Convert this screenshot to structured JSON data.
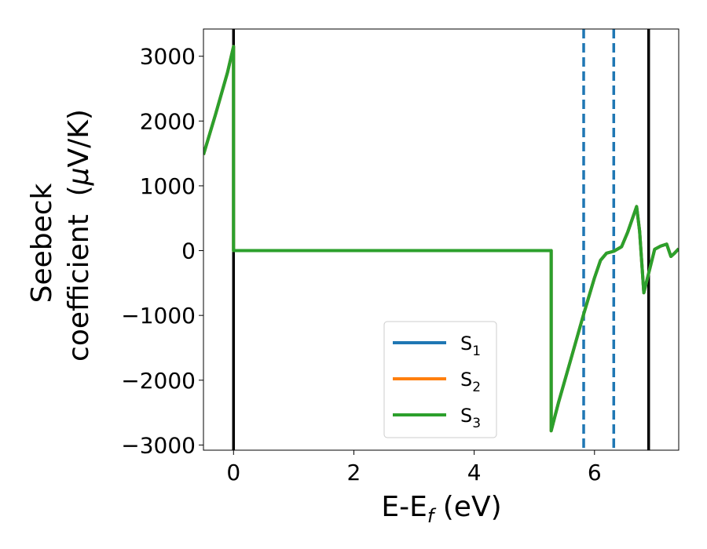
{
  "chart_data": {
    "type": "line",
    "title": "",
    "xlabel": {
      "main": "E-E",
      "sub": "f",
      "suffix": " (eV)"
    },
    "ylabel": {
      "line1": "Seebeck",
      "line2": "coefficient  (",
      "mu": "μ",
      "line2_suffix": "V/K)"
    },
    "xlim": [
      -0.5,
      7.4
    ],
    "ylim": [
      -3080,
      3420
    ],
    "xticks": [
      0,
      2,
      4,
      6
    ],
    "xtick_labels": [
      "0",
      "2",
      "4",
      "6"
    ],
    "yticks": [
      3000,
      2000,
      1000,
      0,
      -1000,
      -2000,
      -3000
    ],
    "ytick_labels": [
      "3000",
      "2000",
      "1000",
      "0",
      "−1000",
      "−2000",
      "−3000"
    ],
    "grid": false,
    "legend_placement": "lower-center",
    "vertical_lines": [
      {
        "x": 0.0,
        "style": "solid",
        "color": "#000000"
      },
      {
        "x": 6.9,
        "style": "solid",
        "color": "#000000"
      },
      {
        "x": 5.82,
        "style": "dashed",
        "color": "#1f77b4"
      },
      {
        "x": 6.32,
        "style": "dashed",
        "color": "#1f77b4"
      }
    ],
    "series": [
      {
        "name": "S",
        "sub": "1",
        "color": "#1f77b4",
        "points": [
          [
            -0.5,
            1480
          ],
          [
            -0.3,
            2100
          ],
          [
            -0.1,
            2750
          ],
          [
            0.0,
            3150
          ],
          [
            0.0,
            0
          ],
          [
            5.28,
            0
          ],
          [
            5.28,
            -2780
          ],
          [
            5.4,
            -2350
          ],
          [
            5.6,
            -1700
          ],
          [
            5.82,
            -980
          ],
          [
            6.0,
            -420
          ],
          [
            6.1,
            -150
          ],
          [
            6.2,
            -40
          ],
          [
            6.32,
            -10
          ],
          [
            6.45,
            60
          ],
          [
            6.55,
            280
          ],
          [
            6.7,
            680
          ],
          [
            6.75,
            300
          ],
          [
            6.82,
            -650
          ],
          [
            6.9,
            -350
          ],
          [
            7.0,
            20
          ],
          [
            7.1,
            70
          ],
          [
            7.2,
            100
          ],
          [
            7.27,
            -90
          ],
          [
            7.33,
            -40
          ],
          [
            7.4,
            30
          ]
        ]
      },
      {
        "name": "S",
        "sub": "2",
        "color": "#ff7f0e",
        "points": [
          [
            -0.5,
            1480
          ],
          [
            -0.3,
            2100
          ],
          [
            -0.1,
            2750
          ],
          [
            0.0,
            3150
          ],
          [
            0.0,
            0
          ],
          [
            5.28,
            0
          ],
          [
            5.28,
            -2780
          ],
          [
            5.4,
            -2350
          ],
          [
            5.6,
            -1700
          ],
          [
            5.82,
            -980
          ],
          [
            6.0,
            -420
          ],
          [
            6.1,
            -150
          ],
          [
            6.2,
            -40
          ],
          [
            6.32,
            -10
          ],
          [
            6.45,
            60
          ],
          [
            6.55,
            280
          ],
          [
            6.7,
            680
          ],
          [
            6.75,
            300
          ],
          [
            6.82,
            -650
          ],
          [
            6.9,
            -350
          ],
          [
            7.0,
            20
          ],
          [
            7.1,
            70
          ],
          [
            7.2,
            100
          ],
          [
            7.27,
            -90
          ],
          [
            7.33,
            -40
          ],
          [
            7.4,
            30
          ]
        ]
      },
      {
        "name": "S",
        "sub": "3",
        "color": "#2ca02c",
        "points": [
          [
            -0.5,
            1480
          ],
          [
            -0.3,
            2100
          ],
          [
            -0.1,
            2750
          ],
          [
            0.0,
            3150
          ],
          [
            0.0,
            0
          ],
          [
            5.28,
            0
          ],
          [
            5.28,
            -2780
          ],
          [
            5.4,
            -2350
          ],
          [
            5.6,
            -1700
          ],
          [
            5.82,
            -980
          ],
          [
            6.0,
            -420
          ],
          [
            6.1,
            -150
          ],
          [
            6.2,
            -40
          ],
          [
            6.32,
            -10
          ],
          [
            6.45,
            60
          ],
          [
            6.55,
            280
          ],
          [
            6.7,
            680
          ],
          [
            6.75,
            300
          ],
          [
            6.82,
            -650
          ],
          [
            6.9,
            -350
          ],
          [
            7.0,
            20
          ],
          [
            7.1,
            70
          ],
          [
            7.2,
            100
          ],
          [
            7.27,
            -90
          ],
          [
            7.33,
            -40
          ],
          [
            7.4,
            30
          ]
        ]
      }
    ]
  }
}
